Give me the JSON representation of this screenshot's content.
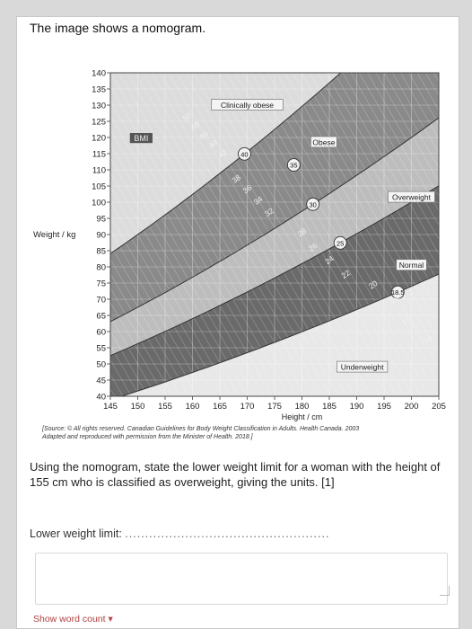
{
  "intro": "The image shows a nomogram.",
  "question": {
    "text": "Using the nomogram, state the lower weight limit for a woman with the height of 155 cm who is classified as overweight, giving the units. [1]",
    "lower_label": "Lower weight limit: ",
    "dots": "...................................................",
    "word_count": "Show word count"
  },
  "source": {
    "line1": "[Source: © All rights reserved. Canadian Guidelines for Body Weight Classification in Adults. Health Canada. 2003",
    "line2": "Adapted and reproduced with permission from the Minister of Health. 2018.]"
  },
  "chart_data": {
    "type": "area",
    "xlabel": "Height / cm",
    "ylabel": "Weight / kg",
    "xlim": [
      145,
      205
    ],
    "ylim": [
      40,
      140
    ],
    "x_ticks": [
      "145",
      "150",
      "155",
      "160",
      "165",
      "170",
      "175",
      "180",
      "185",
      "190",
      "195",
      "200",
      "205"
    ],
    "y_ticks": [
      "140",
      "135",
      "130",
      "125",
      "120",
      "115",
      "110",
      "105",
      "100",
      "95",
      "90",
      "85",
      "80",
      "75",
      "70",
      "65",
      "60",
      "55",
      "50",
      "45",
      "40"
    ],
    "bmi_boundaries": [
      18.5,
      25,
      30,
      40
    ],
    "bands": [
      {
        "label": "Underweight",
        "bmi_from": 0,
        "bmi_to": 18.5,
        "color": "#e8e8e8"
      },
      {
        "label": "Normal",
        "bmi_from": 18.5,
        "bmi_to": 25,
        "color": "#6a6a6a"
      },
      {
        "label": "Overweight",
        "bmi_from": 25,
        "bmi_to": 30,
        "color": "#bdbdbd"
      },
      {
        "label": "Obese",
        "bmi_from": 30,
        "bmi_to": 40,
        "color": "#8a8a8a"
      },
      {
        "label": "Clinically obese",
        "bmi_from": 40,
        "bmi_to": 80,
        "color": "#dcdcdc"
      }
    ],
    "bmi_header": "BMI",
    "bmi_labels": [
      {
        "text": "50",
        "h": 159,
        "circled": false
      },
      {
        "text": "48",
        "h": 160.5,
        "circled": false
      },
      {
        "text": "46",
        "h": 162,
        "circled": false
      },
      {
        "text": "44",
        "h": 163.8,
        "circled": false
      },
      {
        "text": "42",
        "h": 165.5,
        "circled": false
      },
      {
        "text": "40",
        "h": 169.5,
        "circled": true
      },
      {
        "text": "38",
        "h": 168,
        "circled": false
      },
      {
        "text": "36",
        "h": 170,
        "circled": false
      },
      {
        "text": "35",
        "h": 178.5,
        "circled": true
      },
      {
        "text": "34",
        "h": 172,
        "circled": false
      },
      {
        "text": "32",
        "h": 174,
        "circled": false
      },
      {
        "text": "30",
        "h": 182,
        "circled": true
      },
      {
        "text": "28",
        "h": 180,
        "circled": false
      },
      {
        "text": "26",
        "h": 182,
        "circled": false
      },
      {
        "text": "25",
        "h": 187,
        "circled": true
      },
      {
        "text": "24",
        "h": 185,
        "circled": false
      },
      {
        "text": "22",
        "h": 188,
        "circled": false
      },
      {
        "text": "20",
        "h": 193,
        "circled": false
      },
      {
        "text": "18.5",
        "h": 197.5,
        "circled": true
      },
      {
        "text": "18",
        "h": 197,
        "circled": false
      },
      {
        "text": "16",
        "h": 199,
        "circled": false
      },
      {
        "text": "14",
        "h": 203,
        "circled": false
      }
    ]
  }
}
